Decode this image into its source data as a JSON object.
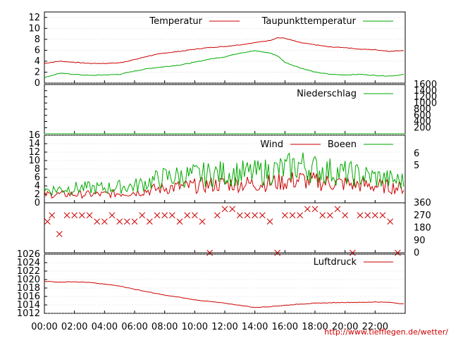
{
  "chart_data": [
    {
      "type": "line",
      "title": "",
      "ylim": [
        0,
        13
      ],
      "y_ticks": [
        "0",
        "2",
        "4",
        "6",
        "8",
        "10",
        "12"
      ],
      "legend_placement": "top-right",
      "grid": true,
      "series": [
        {
          "name": "Temperatur",
          "color": "#cc0000",
          "x": [
            0,
            1,
            2,
            3,
            4,
            5,
            6,
            7,
            8,
            9,
            10,
            11,
            12,
            13,
            14,
            15,
            15.5,
            16,
            17,
            18,
            19,
            20,
            21,
            22,
            23,
            24
          ],
          "values": [
            3.6,
            4.0,
            3.8,
            3.6,
            3.6,
            3.7,
            4.3,
            5.0,
            5.5,
            5.8,
            6.2,
            6.5,
            6.7,
            7.0,
            7.4,
            7.8,
            8.3,
            8.2,
            7.4,
            7.0,
            6.6,
            6.5,
            6.2,
            6.1,
            5.8,
            6.0
          ]
        },
        {
          "name": "Taupunkttemperatur",
          "color": "#00aa00",
          "x": [
            0,
            1,
            2,
            3,
            4,
            5,
            6,
            7,
            8,
            9,
            10,
            11,
            12,
            13,
            14,
            15,
            15.5,
            16,
            17,
            18,
            19,
            20,
            21,
            22,
            23,
            24
          ],
          "values": [
            1.0,
            1.8,
            1.6,
            1.4,
            1.5,
            1.6,
            2.2,
            2.7,
            3.0,
            3.3,
            3.8,
            4.4,
            4.8,
            5.5,
            5.9,
            5.5,
            5.0,
            3.8,
            2.8,
            2.0,
            1.6,
            1.5,
            1.6,
            1.4,
            1.3,
            1.6
          ]
        }
      ]
    },
    {
      "type": "line",
      "title": "",
      "ylim": [
        0,
        1600
      ],
      "y_ticks": [
        "200",
        "400",
        "600",
        "800",
        "1000",
        "1200",
        "1400",
        "1600"
      ],
      "legend_placement": "top-right",
      "series": [
        {
          "name": "Niederschlag",
          "color": "#00aa00",
          "x": [
            0,
            24
          ],
          "values": [
            0,
            0
          ]
        }
      ]
    },
    {
      "type": "line",
      "title": "",
      "ylim": [
        0,
        16
      ],
      "y_ticks": [
        "0",
        "2",
        "4",
        "6",
        "8",
        "10",
        "12",
        "14",
        "16"
      ],
      "y2_ticks": [
        "5",
        "6"
      ],
      "legend_placement": "top-right",
      "series": [
        {
          "name": "Wind",
          "color": "#cc0000",
          "x": [
            0,
            2,
            4,
            6,
            7,
            8,
            10,
            12,
            14,
            16,
            17,
            18,
            20,
            22,
            24
          ],
          "values": [
            2,
            2,
            2,
            2.5,
            3,
            3.5,
            4,
            4.5,
            4.5,
            5,
            5.5,
            5,
            4.5,
            4,
            3.5
          ]
        },
        {
          "name": "Boeen",
          "color": "#00aa00",
          "x": [
            0,
            2,
            4,
            6,
            7,
            8,
            10,
            12,
            14,
            16,
            17,
            18,
            20,
            22,
            24
          ],
          "values": [
            3,
            3.5,
            3.5,
            4,
            5,
            6,
            6.5,
            7,
            7,
            8,
            9,
            8,
            7,
            6,
            5
          ]
        }
      ]
    },
    {
      "type": "scatter",
      "title": "",
      "ylim": [
        0,
        360
      ],
      "y2_ticks": [
        "0",
        "90",
        "180",
        "270",
        "360"
      ],
      "series": [
        {
          "name": "",
          "color": "#cc0000",
          "marker": "x",
          "x": [
            0.2,
            0.5,
            1.0,
            1.5,
            2.0,
            2.5,
            3.0,
            3.5,
            4.0,
            4.5,
            5.0,
            5.5,
            6.0,
            6.5,
            7.0,
            7.5,
            8.0,
            8.5,
            9.0,
            9.5,
            10.0,
            10.5,
            11.0,
            11.5,
            12.0,
            12.5,
            13.0,
            13.5,
            14.0,
            14.5,
            15.0,
            15.5,
            16.0,
            16.5,
            17.0,
            17.5,
            18.0,
            18.5,
            19.0,
            19.5,
            20.0,
            20.5,
            21.0,
            21.5,
            22.0,
            22.5,
            23.0,
            23.5
          ],
          "values": [
            225,
            270,
            135,
            270,
            270,
            270,
            270,
            225,
            225,
            270,
            225,
            225,
            225,
            270,
            225,
            270,
            270,
            270,
            225,
            270,
            270,
            225,
            0,
            270,
            315,
            315,
            270,
            270,
            270,
            270,
            225,
            0,
            270,
            270,
            270,
            315,
            315,
            270,
            270,
            315,
            270,
            0,
            270,
            270,
            270,
            270,
            225,
            0
          ]
        }
      ]
    },
    {
      "type": "line",
      "title": "",
      "ylim": [
        1012,
        1026
      ],
      "y_ticks": [
        "1012",
        "1014",
        "1016",
        "1018",
        "1020",
        "1022",
        "1024",
        "1026"
      ],
      "legend_placement": "top-right",
      "series": [
        {
          "name": "Luftdruck",
          "color": "#cc0000",
          "x": [
            0,
            1,
            2,
            3,
            4,
            5,
            6,
            7,
            8,
            9,
            10,
            11,
            12,
            13,
            14,
            15,
            16,
            17,
            18,
            19,
            20,
            21,
            22,
            23,
            24
          ],
          "values": [
            1019.6,
            1019.4,
            1019.5,
            1019.3,
            1018.9,
            1018.5,
            1017.7,
            1017.0,
            1016.3,
            1015.8,
            1015.2,
            1014.8,
            1014.4,
            1013.9,
            1013.4,
            1013.6,
            1013.9,
            1014.2,
            1014.4,
            1014.5,
            1014.6,
            1014.6,
            1014.7,
            1014.6,
            1014.2
          ]
        }
      ]
    }
  ],
  "x_tick_labels": [
    "00:00",
    "02:00",
    "04:00",
    "06:00",
    "08:00",
    "10:00",
    "12:00",
    "14:00",
    "16:00",
    "18:00",
    "20:00",
    "22:00"
  ],
  "x_range": [
    0,
    24
  ],
  "source_text": "http://www.tiefflegen.de/wetter/"
}
